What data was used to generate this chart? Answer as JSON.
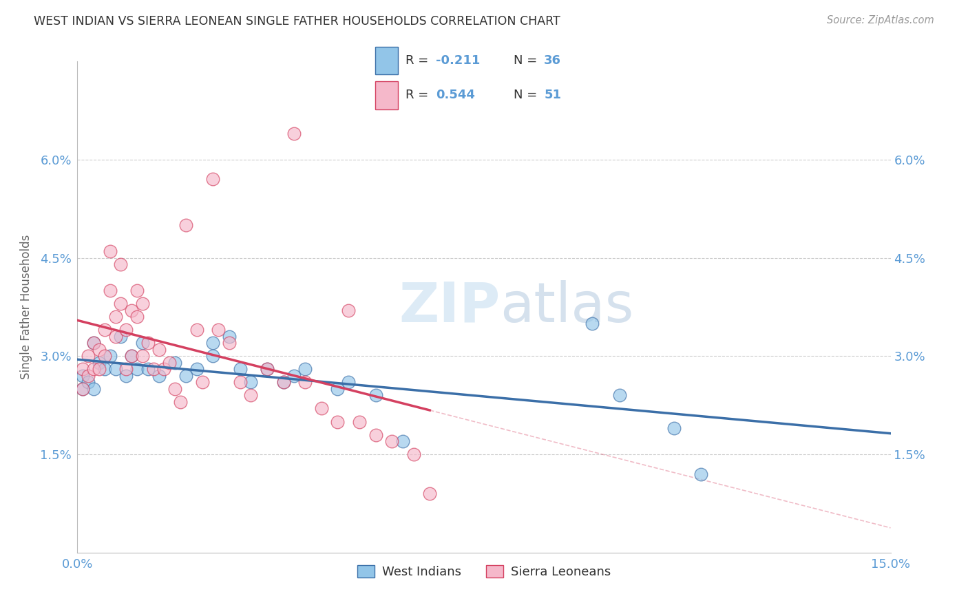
{
  "title": "WEST INDIAN VS SIERRA LEONEAN SINGLE FATHER HOUSEHOLDS CORRELATION CHART",
  "source": "Source: ZipAtlas.com",
  "ylabel": "Single Father Households",
  "watermark": "ZIPatlas",
  "xlim": [
    0.0,
    0.15
  ],
  "ylim": [
    0.0,
    0.075
  ],
  "ytick_vals": [
    0.015,
    0.03,
    0.045,
    0.06
  ],
  "ytick_labels": [
    "1.5%",
    "3.0%",
    "4.5%",
    "6.0%"
  ],
  "xtick_vals": [
    0.0,
    0.03,
    0.06,
    0.09,
    0.12,
    0.15
  ],
  "xtick_labels": [
    "0.0%",
    "",
    "",
    "",
    "",
    "15.0%"
  ],
  "legend_labels": [
    "West Indians",
    "Sierra Leoneans"
  ],
  "legend_R": [
    "-0.211",
    "0.544"
  ],
  "legend_N": [
    "36",
    "51"
  ],
  "blue_color": "#92C5E8",
  "pink_color": "#F5B8CA",
  "blue_line_color": "#3B6FA8",
  "pink_line_color": "#D44060",
  "axis_label_color": "#5B9BD5",
  "grid_color": "#CCCCCC",
  "west_indians_x": [
    0.001,
    0.001,
    0.002,
    0.003,
    0.003,
    0.004,
    0.005,
    0.006,
    0.007,
    0.008,
    0.009,
    0.01,
    0.011,
    0.012,
    0.013,
    0.015,
    0.018,
    0.02,
    0.022,
    0.025,
    0.025,
    0.028,
    0.03,
    0.032,
    0.035,
    0.038,
    0.04,
    0.042,
    0.048,
    0.05,
    0.055,
    0.06,
    0.095,
    0.1,
    0.11,
    0.115
  ],
  "west_indians_y": [
    0.027,
    0.025,
    0.026,
    0.032,
    0.025,
    0.029,
    0.028,
    0.03,
    0.028,
    0.033,
    0.027,
    0.03,
    0.028,
    0.032,
    0.028,
    0.027,
    0.029,
    0.027,
    0.028,
    0.032,
    0.03,
    0.033,
    0.028,
    0.026,
    0.028,
    0.026,
    0.027,
    0.028,
    0.025,
    0.026,
    0.024,
    0.017,
    0.035,
    0.024,
    0.019,
    0.012
  ],
  "sierra_leoneans_x": [
    0.001,
    0.001,
    0.002,
    0.002,
    0.003,
    0.003,
    0.004,
    0.004,
    0.005,
    0.005,
    0.006,
    0.006,
    0.007,
    0.007,
    0.008,
    0.008,
    0.009,
    0.009,
    0.01,
    0.01,
    0.011,
    0.011,
    0.012,
    0.012,
    0.013,
    0.014,
    0.015,
    0.016,
    0.017,
    0.018,
    0.019,
    0.02,
    0.022,
    0.023,
    0.025,
    0.026,
    0.028,
    0.03,
    0.032,
    0.035,
    0.038,
    0.04,
    0.042,
    0.045,
    0.048,
    0.05,
    0.052,
    0.055,
    0.058,
    0.062,
    0.065
  ],
  "sierra_leoneans_y": [
    0.028,
    0.025,
    0.03,
    0.027,
    0.032,
    0.028,
    0.031,
    0.028,
    0.034,
    0.03,
    0.046,
    0.04,
    0.036,
    0.033,
    0.044,
    0.038,
    0.034,
    0.028,
    0.037,
    0.03,
    0.04,
    0.036,
    0.038,
    0.03,
    0.032,
    0.028,
    0.031,
    0.028,
    0.029,
    0.025,
    0.023,
    0.05,
    0.034,
    0.026,
    0.057,
    0.034,
    0.032,
    0.026,
    0.024,
    0.028,
    0.026,
    0.064,
    0.026,
    0.022,
    0.02,
    0.037,
    0.02,
    0.018,
    0.017,
    0.015,
    0.009
  ]
}
